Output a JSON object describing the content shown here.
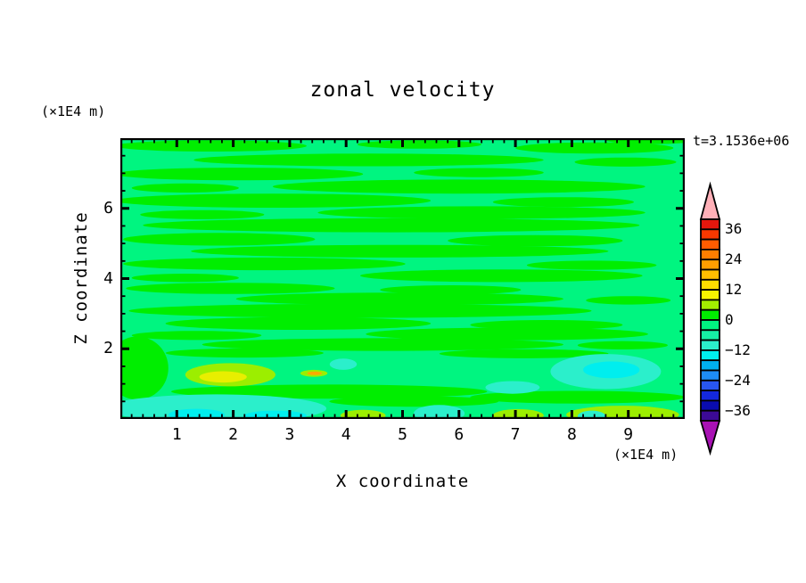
{
  "title": "zonal velocity",
  "annotations": {
    "y_unit": "(×1E4 m)",
    "x_unit": "(×1E4 m)",
    "time": "t=3.1536e+06"
  },
  "axes": {
    "x_label": "X coordinate",
    "z_label": "Z coordinate",
    "x_ticks": [
      1,
      2,
      3,
      4,
      5,
      6,
      7,
      8,
      9
    ],
    "z_ticks": [
      2,
      4,
      6
    ],
    "x_minor_step": 0.2,
    "z_minor_step": 0.5
  },
  "colorbar": {
    "labels": [
      "36",
      "24",
      "12",
      "0",
      "−12",
      "−24",
      "−36"
    ],
    "top_arrow_color": "#FFB0B8",
    "bottom_arrow_color": "#A812B4"
  },
  "chart_data": {
    "type": "contour",
    "title": "zonal velocity",
    "xlabel": "X coordinate",
    "ylabel": "Z coordinate",
    "x_range": [
      0,
      10
    ],
    "z_range": [
      0,
      8
    ],
    "x_unit": "(×1E4 m)",
    "z_unit": "(×1E4 m)",
    "time_annotation": "t=3.1536e+06",
    "contour_interval": 4,
    "level_range": [
      -40,
      40
    ],
    "colorbar_tick_values": [
      36,
      24,
      12,
      0,
      -12,
      -24,
      -36
    ],
    "band_colors": [
      "#E3170D",
      "#F93800",
      "#FF5C00",
      "#FF7E00",
      "#FF9E00",
      "#FFBE00",
      "#FFDC00",
      "#F8F400",
      "#A2EE00",
      "#00EE00",
      "#00F580",
      "#16F0A4",
      "#2BEFCB",
      "#00EEEE",
      "#00B0F0",
      "#1E8CF5",
      "#2856F0",
      "#1428DC",
      "#0A0CB0",
      "#3C0A96"
    ],
    "background_color": "#00F580",
    "background_band": [
      -4,
      0
    ],
    "stripe_color": "#00EE00",
    "stripe_band": [
      0,
      4
    ],
    "green_stripes": [
      [
        1.6,
        7.78,
        1.7,
        0.16
      ],
      [
        5.3,
        7.82,
        1.1,
        0.12
      ],
      [
        8.4,
        7.72,
        1.4,
        0.16
      ],
      [
        9.4,
        7.95,
        0.8,
        0.12
      ],
      [
        4.4,
        7.38,
        3.1,
        0.18
      ],
      [
        8.95,
        7.32,
        0.9,
        0.13
      ],
      [
        2.1,
        6.98,
        2.2,
        0.18
      ],
      [
        6.35,
        7.02,
        1.15,
        0.13
      ],
      [
        6.0,
        6.62,
        3.3,
        0.2
      ],
      [
        1.15,
        6.58,
        0.95,
        0.13
      ],
      [
        2.7,
        6.22,
        2.8,
        0.2
      ],
      [
        7.85,
        6.18,
        1.25,
        0.14
      ],
      [
        6.4,
        5.88,
        2.9,
        0.18
      ],
      [
        1.45,
        5.82,
        1.1,
        0.13
      ],
      [
        4.8,
        5.52,
        4.4,
        0.2
      ],
      [
        1.75,
        5.12,
        1.7,
        0.18
      ],
      [
        7.35,
        5.08,
        1.55,
        0.16
      ],
      [
        4.95,
        4.78,
        3.7,
        0.18
      ],
      [
        2.55,
        4.42,
        2.5,
        0.18
      ],
      [
        8.35,
        4.38,
        1.15,
        0.13
      ],
      [
        6.75,
        4.08,
        2.5,
        0.18
      ],
      [
        1.15,
        4.02,
        0.95,
        0.12
      ],
      [
        1.95,
        3.72,
        1.85,
        0.16
      ],
      [
        5.85,
        3.68,
        1.25,
        0.13
      ],
      [
        4.95,
        3.42,
        2.9,
        0.18
      ],
      [
        9.0,
        3.38,
        0.75,
        0.12
      ],
      [
        4.25,
        3.08,
        4.1,
        0.2
      ],
      [
        3.15,
        2.72,
        2.35,
        0.18
      ],
      [
        7.55,
        2.68,
        1.35,
        0.14
      ],
      [
        6.85,
        2.42,
        2.5,
        0.18
      ],
      [
        1.35,
        2.38,
        1.15,
        0.13
      ],
      [
        4.65,
        2.12,
        3.2,
        0.18
      ],
      [
        8.9,
        2.1,
        0.8,
        0.12
      ],
      [
        7.15,
        1.86,
        1.5,
        0.13
      ],
      [
        2.2,
        1.88,
        1.4,
        0.13
      ],
      [
        0.3,
        1.45,
        0.55,
        0.9
      ],
      [
        3.7,
        0.78,
        2.8,
        0.2
      ],
      [
        8.1,
        0.62,
        1.9,
        0.18
      ],
      [
        5.2,
        0.5,
        1.5,
        0.15
      ]
    ],
    "blobs": [
      {
        "color": "#2BEFCB",
        "band": [
          -12,
          -8
        ],
        "ellipse": [
          1.7,
          0.3,
          1.95,
          0.4
        ]
      },
      {
        "color": "#00EEEE",
        "band": [
          -16,
          -12
        ],
        "ellipse": [
          1.35,
          0.12,
          0.5,
          0.17
        ]
      },
      {
        "color": "#00EEEE",
        "band": [
          -16,
          -12
        ],
        "ellipse": [
          2.75,
          0.1,
          0.55,
          0.14
        ]
      },
      {
        "color": "#2BEFCB",
        "band": [
          -12,
          -8
        ],
        "ellipse": [
          5.65,
          0.16,
          0.45,
          0.24
        ]
      },
      {
        "color": "#2BEFCB",
        "band": [
          -12,
          -8
        ],
        "ellipse": [
          6.95,
          0.9,
          0.48,
          0.18
        ]
      },
      {
        "color": "#2BEFCB",
        "band": [
          -12,
          -8
        ],
        "ellipse": [
          8.6,
          1.35,
          0.98,
          0.5
        ]
      },
      {
        "color": "#00EEEE",
        "band": [
          -16,
          -12
        ],
        "ellipse": [
          8.7,
          1.4,
          0.5,
          0.24
        ]
      },
      {
        "color": "#9CEE00",
        "band": [
          4,
          8
        ],
        "ellipse": [
          1.95,
          1.26,
          0.8,
          0.33
        ]
      },
      {
        "color": "#E8EE00",
        "band": [
          8,
          12
        ],
        "ellipse": [
          1.82,
          1.2,
          0.42,
          0.16
        ]
      },
      {
        "color": "#9CEE00",
        "band": [
          4,
          8
        ],
        "ellipse": [
          3.43,
          1.3,
          0.24,
          0.1
        ]
      },
      {
        "color": "#FFAA00",
        "band": [
          16,
          20
        ],
        "ellipse": [
          3.44,
          1.3,
          0.13,
          0.05
        ]
      },
      {
        "color": "#2BEFCB",
        "band": [
          -12,
          -8
        ],
        "ellipse": [
          3.95,
          1.56,
          0.24,
          0.16
        ]
      },
      {
        "color": "#9CEE00",
        "band": [
          4,
          8
        ],
        "ellipse": [
          4.3,
          0.1,
          0.4,
          0.16
        ]
      },
      {
        "color": "#9CEE00",
        "band": [
          4,
          8
        ],
        "ellipse": [
          7.05,
          0.1,
          0.45,
          0.18
        ]
      },
      {
        "color": "#9CEE00",
        "band": [
          4,
          8
        ],
        "ellipse": [
          8.9,
          0.12,
          1.0,
          0.26
        ]
      },
      {
        "color": "#2BEFCB",
        "band": [
          -12,
          -8
        ],
        "ellipse": [
          8.35,
          0.08,
          0.25,
          0.16
        ]
      }
    ]
  }
}
